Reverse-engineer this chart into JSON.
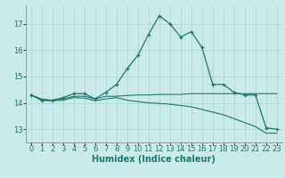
{
  "xlabel": "Humidex (Indice chaleur)",
  "background_color": "#caeaea",
  "grid_color": "#aad4d4",
  "line_color": "#1a7a6e",
  "xlim": [
    -0.5,
    23.5
  ],
  "ylim": [
    12.5,
    17.7
  ],
  "yticks": [
    13,
    14,
    15,
    16,
    17
  ],
  "xticks": [
    0,
    1,
    2,
    3,
    4,
    5,
    6,
    7,
    8,
    9,
    10,
    11,
    12,
    13,
    14,
    15,
    16,
    17,
    18,
    19,
    20,
    21,
    22,
    23
  ],
  "line1_x": [
    0,
    1,
    2,
    3,
    4,
    5,
    6,
    7,
    8,
    9,
    10,
    11,
    12,
    13,
    14,
    15,
    16,
    17,
    18,
    19,
    20,
    21,
    22,
    23
  ],
  "line1_y": [
    14.3,
    14.1,
    14.1,
    14.2,
    14.35,
    14.35,
    14.15,
    14.4,
    14.7,
    15.3,
    15.8,
    16.6,
    17.3,
    17.0,
    16.5,
    16.7,
    16.1,
    14.7,
    14.7,
    14.4,
    14.3,
    14.3,
    13.05,
    13.0
  ],
  "line2_x": [
    0,
    1,
    2,
    3,
    4,
    5,
    6,
    7,
    8,
    9,
    10,
    11,
    12,
    13,
    14,
    15,
    16,
    17,
    18,
    19,
    20,
    21,
    22,
    23
  ],
  "line2_y": [
    14.3,
    14.15,
    14.1,
    14.15,
    14.25,
    14.25,
    14.15,
    14.25,
    14.25,
    14.28,
    14.3,
    14.3,
    14.32,
    14.32,
    14.32,
    14.35,
    14.35,
    14.35,
    14.35,
    14.35,
    14.35,
    14.35,
    14.35,
    14.35
  ],
  "line3_x": [
    0,
    1,
    2,
    3,
    4,
    5,
    6,
    7,
    8,
    9,
    10,
    11,
    12,
    13,
    14,
    15,
    16,
    17,
    18,
    19,
    20,
    21,
    22,
    23
  ],
  "line3_y": [
    14.3,
    14.1,
    14.08,
    14.1,
    14.2,
    14.18,
    14.08,
    14.15,
    14.2,
    14.1,
    14.05,
    14.0,
    13.98,
    13.95,
    13.9,
    13.85,
    13.75,
    13.65,
    13.55,
    13.4,
    13.25,
    13.1,
    12.85,
    12.85
  ],
  "fontsize_axis": 6,
  "fontsize_tick": 6,
  "fontsize_xlabel": 7
}
